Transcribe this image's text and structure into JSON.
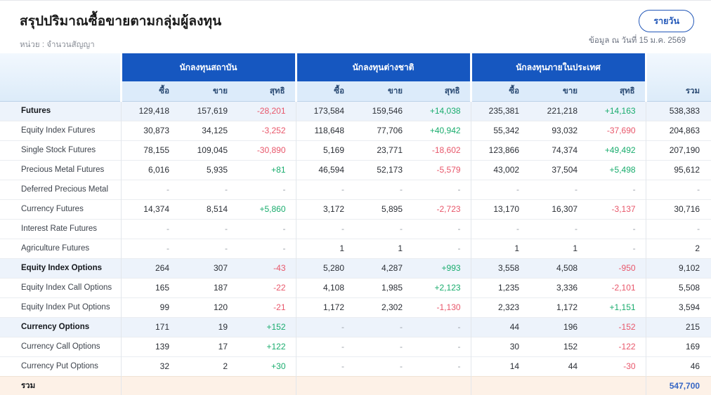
{
  "page": {
    "title": "สรุปปริมาณซื้อขายตามกลุ่มผู้ลงทุน",
    "unit_label": "หน่วย : จำนวนสัญญา",
    "daily_button_label": "รายวัน",
    "as_of_label": "ข้อมูล ณ วันที่ 15 ม.ค. 2569"
  },
  "colors": {
    "header_blue": "#1657c0",
    "subheader_light_blue": "#dcebfa",
    "group_row_blue": "#edf3fb",
    "total_row_peach": "#fdf1e7",
    "positive_green": "#18ac6d",
    "negative_red": "#e8566a",
    "total_value_blue": "#3566c5",
    "button_blue": "#2257b8"
  },
  "table": {
    "groups": [
      {
        "label": "นักลงทุนสถาบัน"
      },
      {
        "label": "นักลงทุนต่างชาติ"
      },
      {
        "label": "นักลงทุนภายในประเทศ"
      }
    ],
    "sub_headers": [
      "ซื้อ",
      "ขาย",
      "สุทธิ"
    ],
    "total_col_label": "รวม",
    "rows": [
      {
        "label": "Futures",
        "type": "group",
        "cells": [
          "129,418",
          "157,619",
          "-28,201",
          "173,584",
          "159,546",
          "+14,038",
          "235,381",
          "221,218",
          "+14,163",
          "538,383"
        ]
      },
      {
        "label": "Equity Index Futures",
        "type": "sub",
        "cells": [
          "30,873",
          "34,125",
          "-3,252",
          "118,648",
          "77,706",
          "+40,942",
          "55,342",
          "93,032",
          "-37,690",
          "204,863"
        ]
      },
      {
        "label": "Single Stock Futures",
        "type": "sub",
        "cells": [
          "78,155",
          "109,045",
          "-30,890",
          "5,169",
          "23,771",
          "-18,602",
          "123,866",
          "74,374",
          "+49,492",
          "207,190"
        ]
      },
      {
        "label": "Precious Metal Futures",
        "type": "sub",
        "cells": [
          "6,016",
          "5,935",
          "+81",
          "46,594",
          "52,173",
          "-5,579",
          "43,002",
          "37,504",
          "+5,498",
          "95,612"
        ]
      },
      {
        "label": "Deferred Precious Metal",
        "type": "sub",
        "cells": [
          "-",
          "-",
          "-",
          "-",
          "-",
          "-",
          "-",
          "-",
          "-",
          "-"
        ]
      },
      {
        "label": "Currency Futures",
        "type": "sub",
        "cells": [
          "14,374",
          "8,514",
          "+5,860",
          "3,172",
          "5,895",
          "-2,723",
          "13,170",
          "16,307",
          "-3,137",
          "30,716"
        ]
      },
      {
        "label": "Interest Rate Futures",
        "type": "sub",
        "cells": [
          "-",
          "-",
          "-",
          "-",
          "-",
          "-",
          "-",
          "-",
          "-",
          "-"
        ]
      },
      {
        "label": "Agriculture Futures",
        "type": "sub",
        "cells": [
          "-",
          "-",
          "-",
          "1",
          "1",
          "-",
          "1",
          "1",
          "-",
          "2"
        ]
      },
      {
        "label": "Equity Index Options",
        "type": "group",
        "cells": [
          "264",
          "307",
          "-43",
          "5,280",
          "4,287",
          "+993",
          "3,558",
          "4,508",
          "-950",
          "9,102"
        ]
      },
      {
        "label": "Equity Index Call Options",
        "type": "sub",
        "cells": [
          "165",
          "187",
          "-22",
          "4,108",
          "1,985",
          "+2,123",
          "1,235",
          "3,336",
          "-2,101",
          "5,508"
        ]
      },
      {
        "label": "Equity Index Put Options",
        "type": "sub",
        "cells": [
          "99",
          "120",
          "-21",
          "1,172",
          "2,302",
          "-1,130",
          "2,323",
          "1,172",
          "+1,151",
          "3,594"
        ]
      },
      {
        "label": "Currency Options",
        "type": "group",
        "cells": [
          "171",
          "19",
          "+152",
          "-",
          "-",
          "-",
          "44",
          "196",
          "-152",
          "215"
        ]
      },
      {
        "label": "Currency Call Options",
        "type": "sub",
        "cells": [
          "139",
          "17",
          "+122",
          "-",
          "-",
          "-",
          "30",
          "152",
          "-122",
          "169"
        ]
      },
      {
        "label": "Currency Put Options",
        "type": "sub",
        "cells": [
          "32",
          "2",
          "+30",
          "-",
          "-",
          "-",
          "14",
          "44",
          "-30",
          "46"
        ]
      }
    ],
    "total_row": {
      "label": "รวม",
      "cells": [
        "",
        "",
        "",
        "",
        "",
        "",
        "",
        "",
        "",
        "547,700"
      ]
    }
  }
}
